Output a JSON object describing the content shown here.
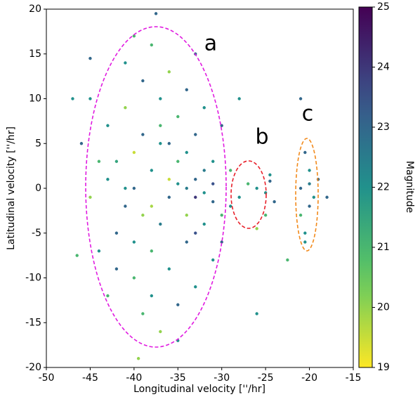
{
  "chart_data": {
    "type": "scatter",
    "xlabel": "Longitudinal velocity [''/hr]",
    "ylabel": "Latitudinal velocity [''/hr]",
    "xlim": [
      -50,
      -15
    ],
    "xticks": [
      -50,
      -45,
      -40,
      -35,
      -30,
      -25,
      -20,
      -15
    ],
    "ylim": [
      -20,
      20
    ],
    "yticks": [
      -20,
      -15,
      -10,
      -5,
      0,
      5,
      10,
      15,
      20
    ],
    "colormap": "viridis_r",
    "clim": [
      19,
      25
    ],
    "cticks": [
      19,
      20,
      21,
      22,
      23,
      24,
      25
    ],
    "colorbar_label": "Magnitude",
    "annotations": [
      "a",
      "b",
      "c"
    ],
    "x": [
      -40,
      -38,
      -36,
      -34,
      -33,
      -32,
      -31,
      -35,
      -37,
      -39,
      -41,
      -43,
      -44,
      -42,
      -38,
      -36,
      -34,
      -32,
      -30,
      -31,
      -33,
      -35,
      -37,
      -39,
      -41,
      -43,
      -40,
      -38,
      -39,
      -37,
      -35,
      -33,
      -42,
      -44,
      -36,
      -34,
      -38,
      -41,
      -32,
      -30,
      -29,
      -29,
      -30,
      -31,
      -45,
      -46,
      -45,
      -43,
      -40,
      -33,
      -37.5,
      -39.5,
      -35,
      -36,
      -38,
      -40,
      -34,
      -32,
      -31,
      -33,
      -35,
      -37,
      -39,
      -41,
      -42,
      -36,
      -34,
      -33,
      -37,
      -40,
      -47,
      -46.5,
      -45,
      -28,
      -27,
      -26,
      -22.5,
      -26,
      -21,
      -28,
      -25,
      -24.5,
      -26,
      -24,
      -25,
      -24.5,
      -20.5,
      -20,
      -21,
      -19.5,
      -20,
      -21,
      -20.5,
      -19,
      -20,
      -20.5,
      -18
    ],
    "y": [
      0,
      2,
      -1,
      0,
      1,
      -0.5,
      0.5,
      3,
      5,
      -3,
      -2,
      1,
      3,
      -5,
      -7,
      -9,
      -6,
      -4,
      -3,
      3,
      6,
      8,
      10,
      12,
      9,
      7,
      -10,
      -12,
      -14,
      -16,
      -13,
      -11,
      -9,
      -7,
      13,
      11,
      16,
      14,
      9,
      7,
      2,
      -2,
      -6,
      -8,
      -1,
      5,
      10,
      -12,
      17,
      15,
      19.5,
      -19,
      -17,
      1,
      -2,
      4,
      -3,
      2,
      -1.5,
      -1,
      0.5,
      -4,
      6,
      0,
      3,
      5,
      4,
      -5,
      7,
      -6,
      10,
      -7.5,
      14.5,
      -1,
      0.5,
      -4.5,
      -8,
      -14,
      10,
      10,
      -0.5,
      0.8,
      0,
      -1.5,
      -3,
      1.5,
      4,
      2,
      0,
      -1,
      -2,
      -3,
      -5,
      1,
      0.5,
      -6,
      -1
    ],
    "magnitude": [
      23,
      22,
      23,
      22.5,
      23,
      22,
      23.5,
      21,
      22,
      20,
      23,
      22,
      21,
      23,
      21,
      22,
      23,
      22,
      21,
      22,
      23,
      21,
      22,
      23,
      20,
      22,
      21,
      22,
      21,
      20,
      23,
      22,
      23,
      22,
      20,
      23,
      21,
      22,
      22,
      23,
      21,
      22,
      23,
      22,
      20,
      23,
      22,
      21,
      21,
      23,
      23,
      20,
      22,
      19.5,
      19.8,
      19.5,
      20,
      22.5,
      23,
      24,
      22,
      22.5,
      23,
      22,
      21.5,
      23,
      22,
      23.5,
      21,
      22,
      22,
      21,
      23,
      22,
      21,
      20,
      21,
      22,
      23,
      22,
      22,
      23,
      22,
      23,
      21,
      22,
      23,
      22,
      23,
      22,
      23,
      21,
      22,
      23,
      22.5,
      22,
      23
    ]
  }
}
